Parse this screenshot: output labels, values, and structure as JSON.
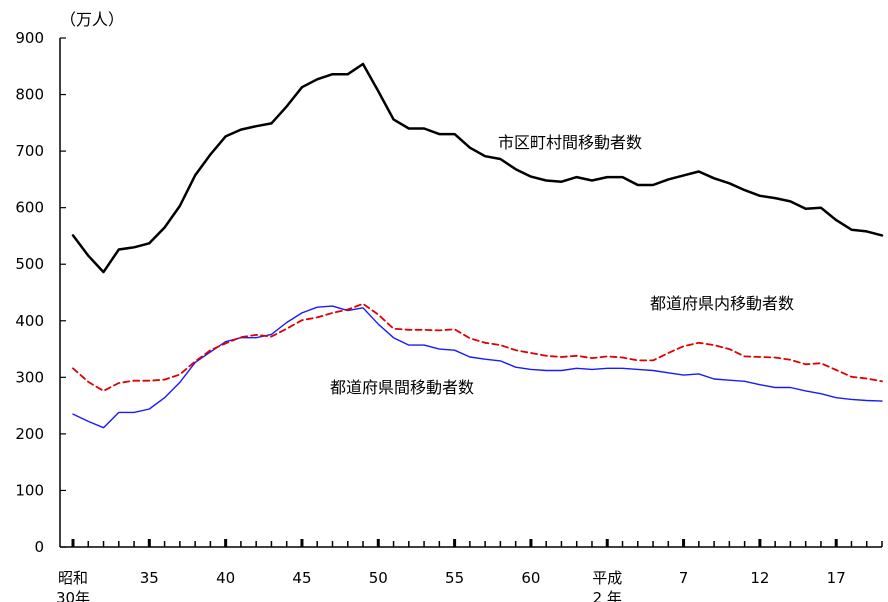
{
  "chart_data": {
    "type": "line",
    "unit_label": "（万人）",
    "ylim": [
      0,
      900
    ],
    "y_ticks": [
      "0",
      "100",
      "200",
      "300",
      "400",
      "500",
      "600",
      "700",
      "800",
      "900"
    ],
    "x_tick_labels": [
      {
        "year": 30,
        "line1": "昭和",
        "line2": "30年"
      },
      {
        "year": 35,
        "line1": "35",
        "line2": ""
      },
      {
        "year": 40,
        "line1": "40",
        "line2": ""
      },
      {
        "year": 45,
        "line1": "45",
        "line2": ""
      },
      {
        "year": 50,
        "line1": "50",
        "line2": ""
      },
      {
        "year": 55,
        "line1": "55",
        "line2": ""
      },
      {
        "year": 60,
        "line1": "60",
        "line2": ""
      },
      {
        "year": 65,
        "line1": "平成",
        "line2": "2 年"
      },
      {
        "year": 70,
        "line1": "7",
        "line2": ""
      },
      {
        "year": 75,
        "line1": "12",
        "line2": ""
      },
      {
        "year": 80,
        "line1": "17",
        "line2": ""
      }
    ],
    "x": [
      30,
      31,
      32,
      33,
      34,
      35,
      36,
      37,
      38,
      39,
      40,
      41,
      42,
      43,
      44,
      45,
      46,
      47,
      48,
      49,
      50,
      51,
      52,
      53,
      54,
      55,
      56,
      57,
      58,
      59,
      60,
      61,
      62,
      63,
      64,
      65,
      66,
      67,
      68,
      69,
      70,
      71,
      72,
      73,
      74,
      75,
      76,
      77,
      78,
      79,
      80,
      81,
      82,
      83
    ],
    "series": [
      {
        "name": "市区町村間移動者数",
        "color": "#000000",
        "dash": "",
        "width": 2.5,
        "values": [
          551,
          515,
          486,
          526,
          530,
          537,
          565,
          603,
          657,
          694,
          726,
          738,
          744,
          749,
          779,
          813,
          827,
          836,
          836,
          854,
          806,
          756,
          740,
          740,
          730,
          730,
          706,
          691,
          686,
          668,
          655,
          648,
          646,
          654,
          648,
          654,
          654,
          640,
          640,
          650,
          657,
          664,
          652,
          643,
          631,
          621,
          617,
          611,
          598,
          600,
          578,
          561,
          558,
          551
        ]
      },
      {
        "name": "都道府県内移動者数",
        "color": "#e00000",
        "dash": "6,4",
        "width": 1.8,
        "values": [
          316,
          292,
          276,
          290,
          294,
          294,
          296,
          305,
          328,
          348,
          360,
          371,
          375,
          372,
          386,
          401,
          406,
          414,
          420,
          430,
          411,
          386,
          384,
          384,
          383,
          385,
          369,
          361,
          357,
          348,
          343,
          338,
          336,
          338,
          334,
          337,
          335,
          330,
          330,
          343,
          355,
          361,
          357,
          350,
          337,
          336,
          335,
          331,
          323,
          325,
          313,
          301,
          298,
          293
        ]
      },
      {
        "name": "都道府県間移動者数",
        "color": "#1a1aff",
        "dash": "",
        "width": 1.4,
        "values": [
          235,
          222,
          211,
          238,
          238,
          244,
          264,
          291,
          326,
          345,
          363,
          370,
          370,
          376,
          397,
          414,
          424,
          426,
          418,
          423,
          394,
          370,
          357,
          357,
          350,
          348,
          336,
          332,
          329,
          318,
          314,
          312,
          312,
          316,
          314,
          316,
          316,
          314,
          312,
          308,
          304,
          306,
          297,
          295,
          293,
          287,
          282,
          282,
          276,
          271,
          264,
          261,
          259,
          258
        ]
      }
    ],
    "series_labels": [
      "市区町村間移動者数",
      "都道府県内移動者数",
      "都道府県間移動者数"
    ]
  }
}
